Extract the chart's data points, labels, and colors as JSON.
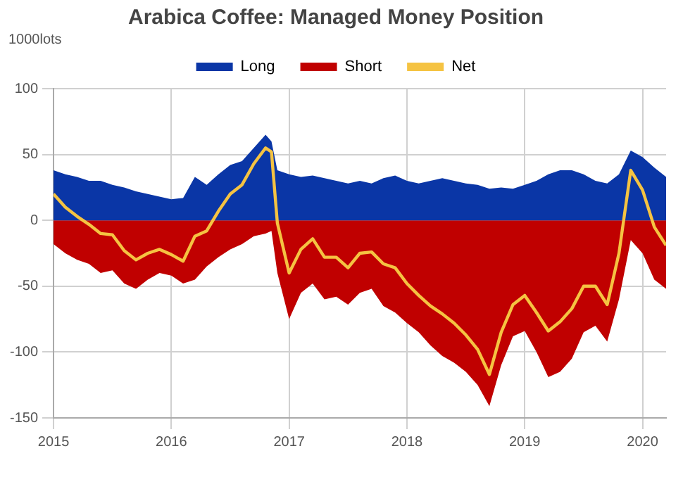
{
  "chart_data": {
    "type": "area",
    "title": "Arabica Coffee: Managed Money Position",
    "ylabel": "1000lots",
    "x": [
      2015.0,
      2015.1,
      2015.2,
      2015.3,
      2015.4,
      2015.5,
      2015.6,
      2015.7,
      2015.8,
      2015.9,
      2016.0,
      2016.1,
      2016.2,
      2016.3,
      2016.4,
      2016.5,
      2016.6,
      2016.7,
      2016.8,
      2016.85,
      2016.9,
      2017.0,
      2017.1,
      2017.2,
      2017.3,
      2017.4,
      2017.5,
      2017.6,
      2017.7,
      2017.8,
      2017.9,
      2018.0,
      2018.1,
      2018.2,
      2018.3,
      2018.4,
      2018.5,
      2018.6,
      2018.7,
      2018.8,
      2018.9,
      2019.0,
      2019.1,
      2019.2,
      2019.3,
      2019.4,
      2019.5,
      2019.6,
      2019.7,
      2019.8,
      2019.9,
      2020.0,
      2020.1,
      2020.2
    ],
    "series": [
      {
        "name": "Long",
        "color": "#0a36a6",
        "values": [
          38,
          35,
          33,
          30,
          30,
          27,
          25,
          22,
          20,
          18,
          16,
          17,
          33,
          27,
          35,
          42,
          45,
          55,
          65,
          60,
          38,
          35,
          33,
          34,
          32,
          30,
          28,
          30,
          28,
          32,
          34,
          30,
          28,
          30,
          32,
          30,
          28,
          27,
          24,
          25,
          24,
          27,
          30,
          35,
          38,
          38,
          35,
          30,
          28,
          35,
          53,
          48,
          40,
          33
        ]
      },
      {
        "name": "Short",
        "color": "#c00000",
        "values": [
          -18,
          -25,
          -30,
          -33,
          -40,
          -38,
          -48,
          -52,
          -45,
          -40,
          -42,
          -48,
          -45,
          -35,
          -28,
          -22,
          -18,
          -12,
          -10,
          -8,
          -40,
          -75,
          -55,
          -48,
          -60,
          -58,
          -64,
          -55,
          -52,
          -65,
          -70,
          -78,
          -85,
          -95,
          -103,
          -108,
          -115,
          -125,
          -141,
          -110,
          -88,
          -84,
          -100,
          -119,
          -115,
          -105,
          -85,
          -80,
          -92,
          -60,
          -15,
          -25,
          -45,
          -52
        ]
      },
      {
        "name": "Net",
        "type": "line",
        "color": "#f5c342",
        "values": [
          20,
          10,
          3,
          -3,
          -10,
          -11,
          -23,
          -30,
          -25,
          -22,
          -26,
          -31,
          -12,
          -8,
          7,
          20,
          27,
          43,
          55,
          52,
          -2,
          -40,
          -22,
          -14,
          -28,
          -28,
          -36,
          -25,
          -24,
          -33,
          -36,
          -48,
          -57,
          -65,
          -71,
          -78,
          -87,
          -98,
          -117,
          -85,
          -64,
          -57,
          -70,
          -84,
          -77,
          -67,
          -50,
          -50,
          -64,
          -25,
          38,
          23,
          -5,
          -19
        ]
      }
    ],
    "xlim": [
      2015,
      2020.2
    ],
    "xticks": [
      2015,
      2016,
      2017,
      2018,
      2019,
      2020
    ],
    "ylim": [
      -150,
      100
    ],
    "yticks": [
      -150,
      -100,
      -50,
      0,
      50,
      100
    ],
    "grid": true,
    "legend": "top",
    "marker": "none"
  }
}
